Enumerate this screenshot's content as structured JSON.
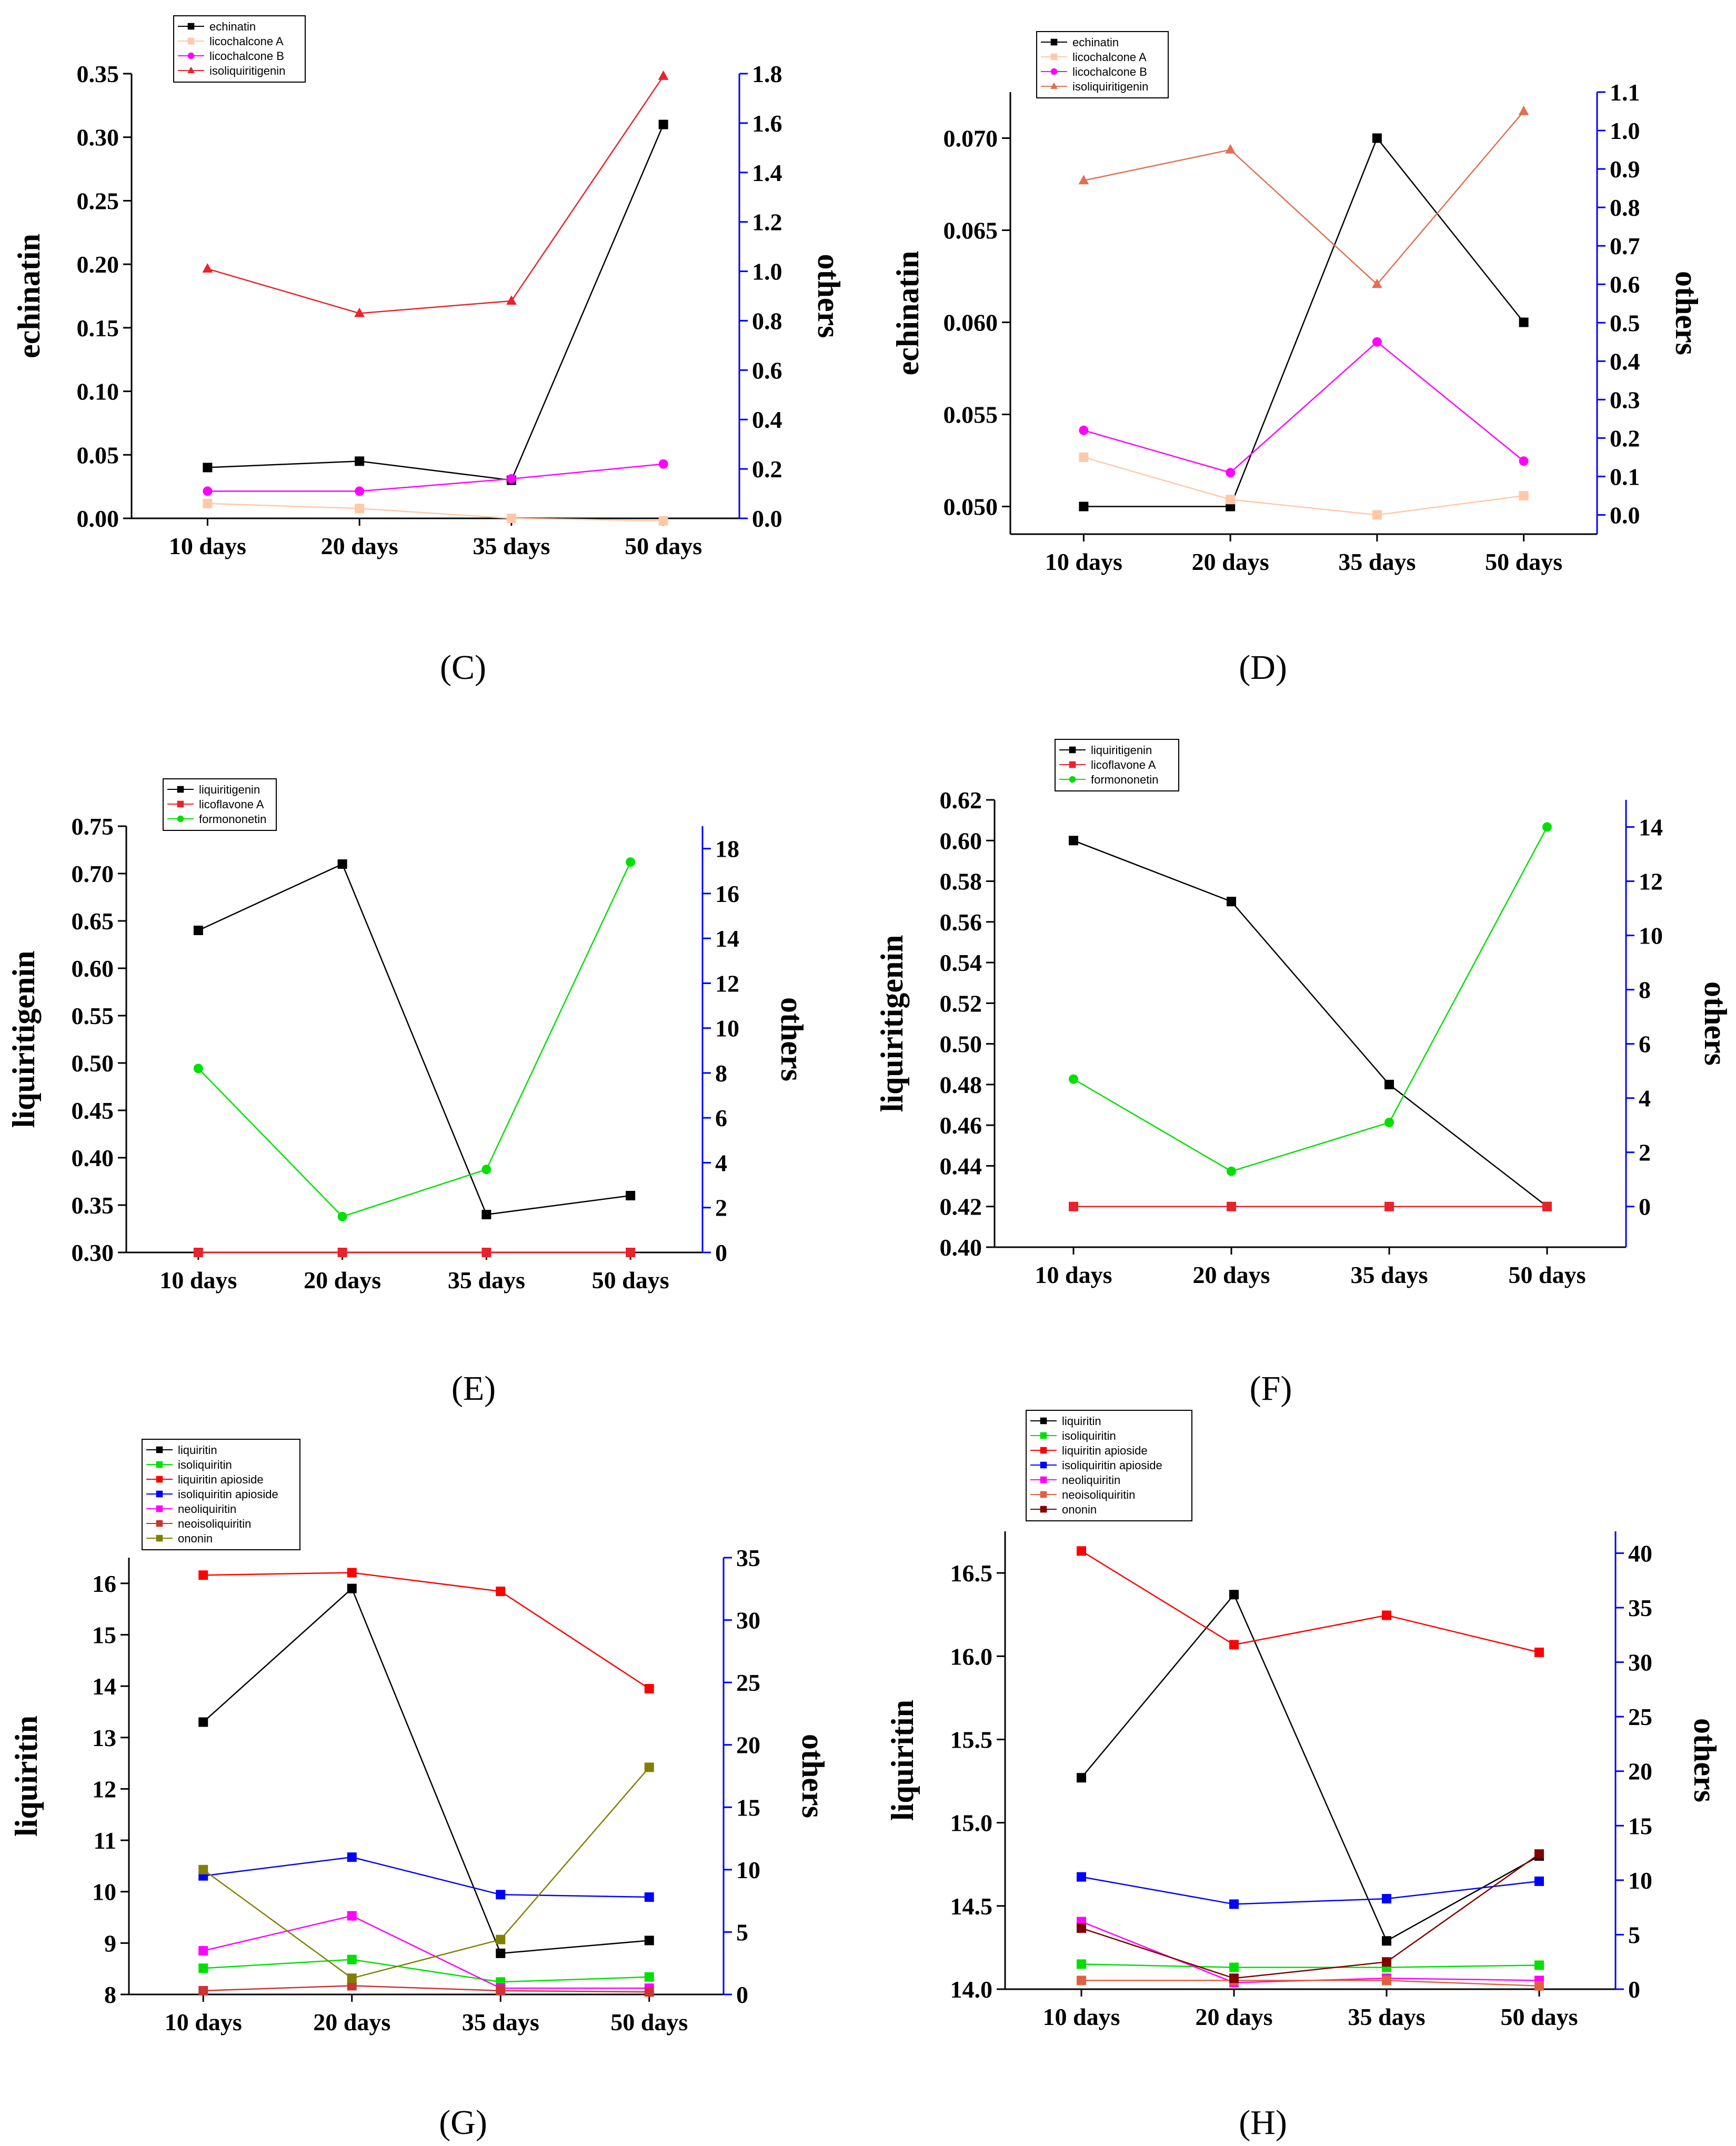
{
  "chart_data": [
    {
      "type": "line",
      "panel": "(C)",
      "categories": [
        "10 days",
        "20 days",
        "35 days",
        "50 days"
      ],
      "ylabel": "echinatin",
      "y2label": "others",
      "ylim": [
        0,
        0.35
      ],
      "y2lim": [
        0,
        1.8
      ],
      "y_ticks": [
        "0.00",
        "0.05",
        "0.10",
        "0.15",
        "0.20",
        "0.25",
        "0.30",
        "0.35"
      ],
      "y2_ticks": [
        "0.0",
        "0.2",
        "0.4",
        "0.6",
        "0.8",
        "1.0",
        "1.2",
        "1.4",
        "1.6",
        "1.8"
      ],
      "legend": "top-left",
      "series": [
        {
          "name": "echinatin",
          "axis": "left",
          "color": "#000000",
          "marker": "square",
          "values": [
            0.04,
            0.045,
            0.03,
            0.31
          ]
        },
        {
          "name": "licochalcone A",
          "axis": "right",
          "color": "#FFC8A8",
          "marker": "square",
          "values": [
            0.06,
            0.04,
            0.0,
            -0.01
          ]
        },
        {
          "name": "licochalcone B",
          "axis": "right",
          "color": "#FF00FF",
          "marker": "circle",
          "values": [
            0.11,
            0.11,
            0.16,
            0.22
          ]
        },
        {
          "name": "isoliquiritigenin",
          "axis": "right",
          "color": "#E8232C",
          "marker": "triangle",
          "values": [
            1.01,
            0.83,
            0.88,
            1.79
          ]
        }
      ]
    },
    {
      "type": "line",
      "panel": "(D)",
      "categories": [
        "10 days",
        "20 days",
        "35 days",
        "50 days"
      ],
      "ylabel": "echinatin",
      "y2label": "others",
      "ylim": [
        0.0485,
        0.0725
      ],
      "y2lim": [
        -0.05,
        1.1
      ],
      "y_ticks": [
        "0.050",
        "0.055",
        "0.060",
        "0.065",
        "0.070"
      ],
      "y2_ticks": [
        "0.0",
        "0.1",
        "0.2",
        "0.3",
        "0.4",
        "0.5",
        "0.6",
        "0.7",
        "0.8",
        "0.9",
        "1.0",
        "1.1"
      ],
      "legend": "top-left",
      "series": [
        {
          "name": "echinatin",
          "axis": "left",
          "color": "#000000",
          "marker": "square",
          "values": [
            0.05,
            0.05,
            0.07,
            0.06
          ]
        },
        {
          "name": "licochalcone A",
          "axis": "right",
          "color": "#FFC8A8",
          "marker": "square",
          "values": [
            0.15,
            0.04,
            0.0,
            0.05
          ]
        },
        {
          "name": "licochalcone B",
          "axis": "right",
          "color": "#FF00FF",
          "marker": "circle",
          "values": [
            0.22,
            0.11,
            0.45,
            0.14
          ]
        },
        {
          "name": "isoliquiritigenin",
          "axis": "right",
          "color": "#E07050",
          "marker": "triangle",
          "values": [
            0.87,
            0.95,
            0.6,
            1.05
          ]
        }
      ]
    },
    {
      "type": "line",
      "panel": "(E)",
      "categories": [
        "10 days",
        "20 days",
        "35 days",
        "50 days"
      ],
      "ylabel": "liquiritigenin",
      "y2label": "others",
      "ylim": [
        0.3,
        0.75
      ],
      "y2lim": [
        0,
        19
      ],
      "y_ticks": [
        "0.30",
        "0.35",
        "0.40",
        "0.45",
        "0.50",
        "0.55",
        "0.60",
        "0.65",
        "0.70",
        "0.75"
      ],
      "y2_ticks": [
        "0",
        "2",
        "4",
        "6",
        "8",
        "10",
        "12",
        "14",
        "16",
        "18"
      ],
      "legend": "top-left",
      "series": [
        {
          "name": "liquiritigenin",
          "axis": "left",
          "color": "#000000",
          "marker": "square",
          "values": [
            0.64,
            0.71,
            0.34,
            0.36
          ]
        },
        {
          "name": "licoflavone A",
          "axis": "right",
          "color": "#E8232C",
          "marker": "square",
          "values": [
            0,
            0,
            0,
            0
          ]
        },
        {
          "name": "formononetin",
          "axis": "right",
          "color": "#00E000",
          "marker": "circle",
          "values": [
            8.2,
            1.6,
            3.7,
            17.4
          ]
        }
      ]
    },
    {
      "type": "line",
      "panel": "(F)",
      "categories": [
        "10 days",
        "20 days",
        "35 days",
        "50 days"
      ],
      "ylabel": "liquiritigenin",
      "y2label": "others",
      "ylim": [
        0.4,
        0.62
      ],
      "y2lim": [
        -1.5,
        15
      ],
      "y_ticks": [
        "0.40",
        "0.42",
        "0.44",
        "0.46",
        "0.48",
        "0.50",
        "0.52",
        "0.54",
        "0.56",
        "0.58",
        "0.60",
        "0.62"
      ],
      "y2_ticks": [
        "0",
        "2",
        "4",
        "6",
        "8",
        "10",
        "12",
        "14"
      ],
      "legend": "top-left",
      "series": [
        {
          "name": "liquiritigenin",
          "axis": "left",
          "color": "#000000",
          "marker": "square",
          "values": [
            0.6,
            0.57,
            0.48,
            0.42
          ]
        },
        {
          "name": "licoflavone A",
          "axis": "right",
          "color": "#E8232C",
          "marker": "square",
          "values": [
            0,
            0,
            0,
            0
          ]
        },
        {
          "name": "formononetin",
          "axis": "right",
          "color": "#00E000",
          "marker": "circle",
          "values": [
            4.7,
            1.3,
            3.1,
            14.0
          ]
        }
      ]
    },
    {
      "type": "line",
      "panel": "(G)",
      "categories": [
        "10 days",
        "20 days",
        "35 days",
        "50 days"
      ],
      "ylabel": "liquiritin",
      "y2label": "others",
      "ylim": [
        8,
        16.5
      ],
      "y2lim": [
        0,
        35
      ],
      "y_ticks": [
        "8",
        "9",
        "10",
        "11",
        "12",
        "13",
        "14",
        "15",
        "16"
      ],
      "y2_ticks": [
        "0",
        "5",
        "10",
        "15",
        "20",
        "25",
        "30",
        "35"
      ],
      "legend": "top-left",
      "series": [
        {
          "name": "liquiritin",
          "axis": "left",
          "color": "#000000",
          "marker": "square",
          "values": [
            13.3,
            15.9,
            8.8,
            9.05
          ]
        },
        {
          "name": "isoliquiritin",
          "axis": "right",
          "color": "#00E000",
          "marker": "square",
          "values": [
            2.1,
            2.8,
            1.0,
            1.4
          ]
        },
        {
          "name": "liquiritin apioside",
          "axis": "right",
          "color": "#FF0000",
          "marker": "square",
          "values": [
            33.6,
            33.8,
            32.3,
            24.5
          ]
        },
        {
          "name": "isoliquiritin apioside",
          "axis": "right",
          "color": "#0000FF",
          "marker": "square",
          "values": [
            9.5,
            11.0,
            8.0,
            7.8
          ]
        },
        {
          "name": "neoliquiritin",
          "axis": "right",
          "color": "#FF00FF",
          "marker": "square",
          "values": [
            3.5,
            6.3,
            0.5,
            0.5
          ]
        },
        {
          "name": "neoisoliquiritin",
          "axis": "right",
          "color": "#CC3333",
          "marker": "square",
          "values": [
            0.3,
            0.7,
            0.3,
            0.2
          ]
        },
        {
          "name": "ononin",
          "axis": "right",
          "color": "#808000",
          "marker": "square",
          "values": [
            10.0,
            1.3,
            4.4,
            18.2
          ]
        }
      ]
    },
    {
      "type": "line",
      "panel": "(H)",
      "categories": [
        "10 days",
        "20 days",
        "35 days",
        "50 days"
      ],
      "ylabel": "liquiritin",
      "y2label": "others",
      "ylim": [
        14.0,
        16.75
      ],
      "y2lim": [
        0,
        42
      ],
      "y_ticks": [
        "14.0",
        "14.5",
        "15.0",
        "15.5",
        "16.0",
        "16.5"
      ],
      "y2_ticks": [
        "0",
        "5",
        "10",
        "15",
        "20",
        "25",
        "30",
        "35",
        "40"
      ],
      "legend": "top-left",
      "series": [
        {
          "name": "liquiritin",
          "axis": "left",
          "color": "#000000",
          "marker": "square",
          "values": [
            15.27,
            16.37,
            14.29,
            14.8
          ]
        },
        {
          "name": "isoliquiritin",
          "axis": "right",
          "color": "#00E000",
          "marker": "square",
          "values": [
            2.3,
            2.0,
            2.0,
            2.2
          ]
        },
        {
          "name": "liquiritin apioside",
          "axis": "right",
          "color": "#FF0000",
          "marker": "square",
          "values": [
            40.2,
            31.6,
            34.3,
            30.9
          ]
        },
        {
          "name": "isoliquiritin apioside",
          "axis": "right",
          "color": "#0000FF",
          "marker": "square",
          "values": [
            10.3,
            7.8,
            8.3,
            9.9
          ]
        },
        {
          "name": "neoliquiritin",
          "axis": "right",
          "color": "#FF00FF",
          "marker": "square",
          "values": [
            6.2,
            0.6,
            1.0,
            0.8
          ]
        },
        {
          "name": "neoisoliquiritin",
          "axis": "right",
          "color": "#E06040",
          "marker": "square",
          "values": [
            0.8,
            0.8,
            0.8,
            0.3
          ]
        },
        {
          "name": "ononin",
          "axis": "right",
          "color": "#800000",
          "marker": "square",
          "values": [
            5.6,
            1.0,
            2.5,
            12.4
          ]
        }
      ]
    }
  ]
}
